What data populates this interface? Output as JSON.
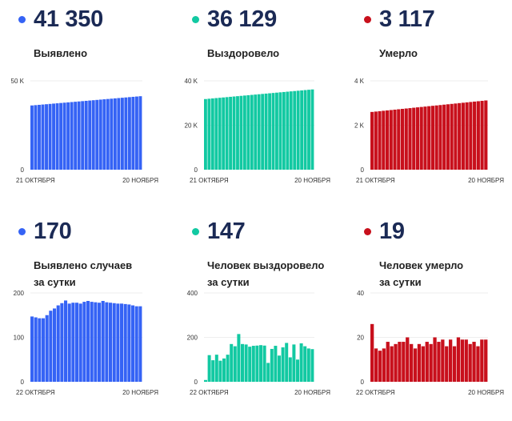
{
  "colors": {
    "blue": "#3563f5",
    "green": "#12c9a2",
    "red": "#c8101c",
    "title": "#1b2a55"
  },
  "cards": [
    {
      "value": "41 350",
      "label": [
        "Выявлено"
      ],
      "color": "#3563f5",
      "yticks": [
        "0",
        "50 K"
      ],
      "ymax": 50000,
      "ytickvals": [
        0,
        50000
      ],
      "xstart": "21 ОКТЯБРЯ",
      "xend": "20 НОЯБРЯ"
    },
    {
      "value": "36 129",
      "label": [
        "Выздоровело"
      ],
      "color": "#12c9a2",
      "yticks": [
        "0",
        "20 K",
        "40 K"
      ],
      "ymax": 40000,
      "ytickvals": [
        0,
        20000,
        40000
      ],
      "xstart": "21 ОКТЯБРЯ",
      "xend": "20 НОЯБРЯ"
    },
    {
      "value": "3 117",
      "label": [
        "Умерло"
      ],
      "color": "#c8101c",
      "yticks": [
        "0",
        "2 K",
        "4 K"
      ],
      "ymax": 4000,
      "ytickvals": [
        0,
        2000,
        4000
      ],
      "xstart": "21 ОКТЯБРЯ",
      "xend": "20 НОЯБРЯ"
    },
    {
      "value": "170",
      "label": [
        "Выявлено случаев",
        "за сутки"
      ],
      "color": "#3563f5",
      "yticks": [
        "0",
        "100",
        "200"
      ],
      "ymax": 200,
      "ytickvals": [
        0,
        100,
        200
      ],
      "xstart": "22 ОКТЯБРЯ",
      "xend": "20 НОЯБРЯ"
    },
    {
      "value": "147",
      "label": [
        "Человек выздоровело",
        "за сутки"
      ],
      "color": "#12c9a2",
      "yticks": [
        "0",
        "200",
        "400"
      ],
      "ymax": 400,
      "ytickvals": [
        0,
        200,
        400
      ],
      "xstart": "22 ОКТЯБРЯ",
      "xend": "20 НОЯБРЯ"
    },
    {
      "value": "19",
      "label": [
        "Человек умерло",
        "за сутки"
      ],
      "color": "#c8101c",
      "yticks": [
        "0",
        "20",
        "40"
      ],
      "ymax": 40,
      "ytickvals": [
        0,
        20,
        40
      ],
      "xstart": "22 ОКТЯБРЯ",
      "xend": "20 НОЯБРЯ"
    }
  ],
  "chart_data": [
    {
      "type": "bar",
      "title": "Выявлено",
      "ylim": [
        0,
        50000
      ],
      "x_range": [
        "21 октября",
        "20 ноября"
      ],
      "values": [
        36150,
        36323,
        36497,
        36670,
        36843,
        37017,
        37190,
        37363,
        37537,
        37710,
        37883,
        38057,
        38230,
        38403,
        38577,
        38750,
        38923,
        39097,
        39270,
        39443,
        39617,
        39790,
        39963,
        40137,
        40310,
        40483,
        40657,
        40830,
        41003,
        41177,
        41350
      ]
    },
    {
      "type": "bar",
      "title": "Выздоровело",
      "ylim": [
        0,
        40000
      ],
      "x_range": [
        "21 октября",
        "20 ноября"
      ],
      "values": [
        31800,
        31944,
        32089,
        32233,
        32377,
        32522,
        32666,
        32810,
        32954,
        33099,
        33243,
        33387,
        33532,
        33676,
        33820,
        33965,
        34109,
        34253,
        34398,
        34542,
        34686,
        34830,
        34975,
        35119,
        35263,
        35408,
        35552,
        35696,
        35841,
        35985,
        36129
      ]
    },
    {
      "type": "bar",
      "title": "Умерло",
      "ylim": [
        0,
        4000
      ],
      "x_range": [
        "21 октября",
        "20 ноября"
      ],
      "values": [
        2600,
        2617,
        2634,
        2652,
        2669,
        2686,
        2703,
        2721,
        2738,
        2755,
        2772,
        2790,
        2807,
        2824,
        2841,
        2859,
        2876,
        2893,
        2910,
        2928,
        2945,
        2962,
        2979,
        2997,
        3014,
        3031,
        3048,
        3066,
        3083,
        3100,
        3117
      ]
    },
    {
      "type": "bar",
      "title": "Выявлено случаев за сутки",
      "ylim": [
        0,
        200
      ],
      "x_range": [
        "22 октября",
        "20 ноября"
      ],
      "values": [
        147,
        145,
        143,
        143,
        150,
        160,
        165,
        172,
        177,
        183,
        176,
        178,
        178,
        176,
        180,
        182,
        180,
        179,
        178,
        182,
        179,
        178,
        177,
        176,
        176,
        175,
        174,
        172,
        170,
        170
      ]
    },
    {
      "type": "bar",
      "title": "Человек выздоровело за сутки",
      "ylim": [
        0,
        400
      ],
      "x_range": [
        "22 октября",
        "20 ноября"
      ],
      "values": [
        8,
        120,
        97,
        122,
        95,
        105,
        122,
        170,
        160,
        215,
        170,
        168,
        158,
        162,
        163,
        165,
        163,
        85,
        148,
        162,
        118,
        155,
        175,
        110,
        168,
        100,
        173,
        160,
        150,
        147
      ]
    },
    {
      "type": "bar",
      "title": "Человек умерло за сутки",
      "ylim": [
        0,
        40
      ],
      "x_range": [
        "22 октября",
        "20 ноября"
      ],
      "values": [
        26,
        15,
        14,
        15,
        18,
        16,
        17,
        18,
        18,
        20,
        17,
        15,
        17,
        16,
        18,
        17,
        20,
        18,
        19,
        16,
        19,
        16,
        20,
        19,
        19,
        17,
        18,
        16,
        19,
        19
      ]
    }
  ]
}
